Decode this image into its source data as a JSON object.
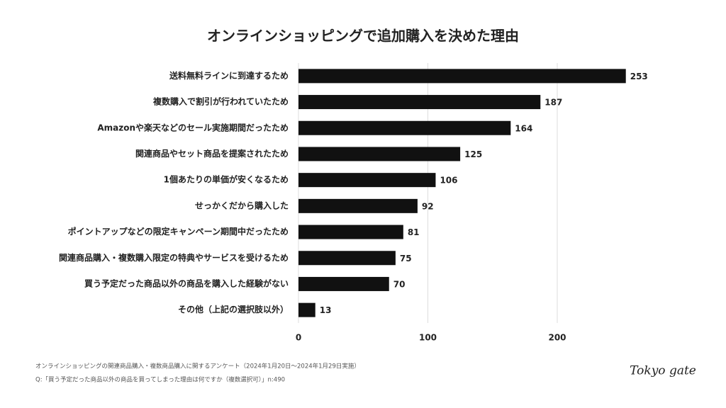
{
  "chart_data": {
    "type": "barh",
    "title": "オンラインショッピングで追加購入を決めた理由",
    "categories": [
      "送料無料ラインに到達するため",
      "複数購入で割引が行われていたため",
      "Amazonや楽天などのセール実施期間だったため",
      "関連商品やセット商品を提案されたため",
      "1個あたりの単価が安くなるため",
      "せっかくだから購入した",
      "ポイントアップなどの限定キャンペーン期間中だったため",
      "関連商品購入・複数購入限定の特典やサービスを受けるため",
      "買う予定だった商品以外の商品を購入した経験がない",
      "その他（上記の選択肢以外）"
    ],
    "values": [
      253,
      187,
      164,
      125,
      106,
      92,
      81,
      75,
      70,
      13
    ],
    "color": "#111111",
    "xlim": [
      0,
      265
    ],
    "xticks": [
      0,
      100,
      200
    ],
    "grid": true
  },
  "footer": {
    "survey": "オンラインショッピングの関連商品購入・複数商品購入に関するアンケート（2024年1月20日〜2024年1月29日実施）",
    "question": "Q:「買う予定だった商品以外の商品を買ってしまった理由は何ですか（複数選択可）」n:490"
  },
  "logo": "Tokyo gate"
}
